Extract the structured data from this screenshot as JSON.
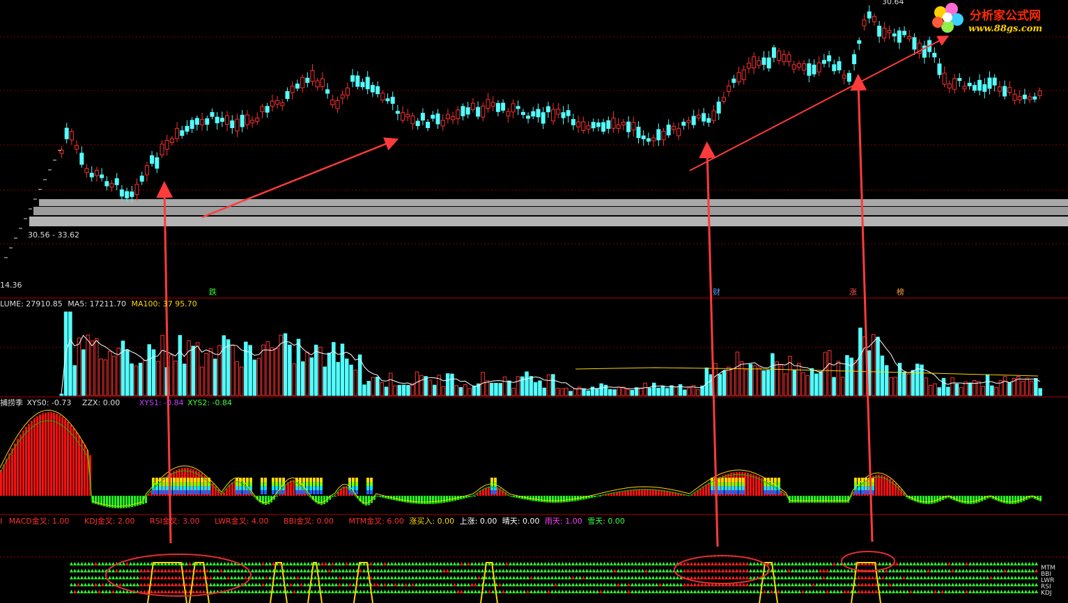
{
  "logo": {
    "title": "分析家公式网",
    "url": "www.88gs.com"
  },
  "price_panel": {
    "range_label": "30.56 - 33.62",
    "low_label": "14.36",
    "high_label": "30.64"
  },
  "markers": {
    "fall": "跌",
    "fortune": "财",
    "rise": "涨",
    "rank": "榜"
  },
  "volume_panel": {
    "label_prefix": "LUME:",
    "volume": "27910.85",
    "ma5_label": "MA5:",
    "ma5": "17211.70",
    "ma100_label": "MA100:",
    "ma100": "37   95.70"
  },
  "indicator_panel": {
    "name": "捕捞季",
    "xys0": "XYS0: -0.73",
    "zzx": "ZZX: 0.00",
    "xys1": "XYS1: -0.84",
    "xys2": "XYS2: -0.84"
  },
  "signal_panel": {
    "prefix": "I",
    "items": [
      {
        "text": "MACD金叉: 1.00",
        "color": "#ff3030"
      },
      {
        "text": "KDJ金叉: 2.00",
        "color": "#ff3030"
      },
      {
        "text": "RSI金叉: 3.00",
        "color": "#ff3030"
      },
      {
        "text": "LWR金叉: 4.00",
        "color": "#ff3030"
      },
      {
        "text": "BBI金叉: 0.00",
        "color": "#ff3030"
      },
      {
        "text": "MTM金叉: 6.00",
        "color": "#ff3030"
      },
      {
        "text": "涨买入: 0.00",
        "color": "#ffd700"
      },
      {
        "text": "上涨: 0.00",
        "color": "#ffffff"
      },
      {
        "text": "晴天: 0.00",
        "color": "#ffffff"
      },
      {
        "text": "雨天: 1.00",
        "color": "#ff40ff"
      },
      {
        "text": "雪天: 0.00",
        "color": "#40ff40"
      }
    ]
  },
  "side_tabs": [
    "MTM",
    "BBI",
    "LWR",
    "RSI",
    "KDJ"
  ],
  "colors": {
    "background": "#000000",
    "up": "#ff3030",
    "down": "#54ffff",
    "grid": "#8b0000",
    "arrow": "#ff3b3b",
    "band": "#a0a0a0"
  }
}
